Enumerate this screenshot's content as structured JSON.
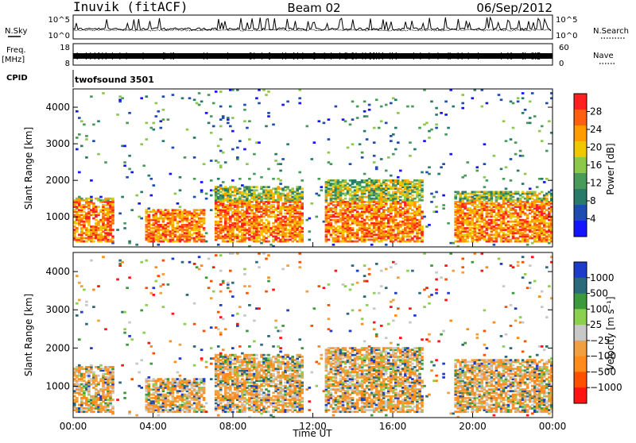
{
  "header": {
    "station": "Inuvik (fitACF)",
    "beam": "Beam 02",
    "date": "06/Sep/2012"
  },
  "left_labels": {
    "nsky": "N.Sky",
    "freq": "Freq.",
    "freq_unit": "[MHz]",
    "cpid": "CPID"
  },
  "right_labels": {
    "nsearch": "N.Search",
    "nave": "Nave"
  },
  "cpid_text": "twofsound 3501",
  "noise_axis": {
    "left_ticks": [
      "10^5",
      "10^0"
    ],
    "right_ticks": [
      "10^5",
      "10^0"
    ]
  },
  "freq_axis": {
    "left_ticks": [
      "18",
      "8"
    ],
    "right_ticks": [
      "60",
      "0"
    ]
  },
  "colors": {
    "power_scale": [
      "#1414ff",
      "#1f4cb0",
      "#2a7a6a",
      "#4a9a5a",
      "#8cc84a",
      "#f0c800",
      "#ff9c00",
      "#ff6010",
      "#ff2020"
    ],
    "velocity_scale": [
      "#ff1414",
      "#ff5000",
      "#ff8c1a",
      "#f0a040",
      "#c8c8c8",
      "#8cd050",
      "#3c9a3c",
      "#2a6a7a",
      "#1e3cc8"
    ]
  },
  "chart_data": [
    {
      "type": "heatmap",
      "panel": "power",
      "ylabel": "Slant Range [km]",
      "ylim": [
        180,
        4500
      ],
      "yticks": [
        "1000",
        "2000",
        "3000",
        "4000"
      ],
      "xlim": [
        "00:00",
        "24:00"
      ],
      "colorbar": {
        "label": "Power [dB]",
        "range": [
          0,
          32
        ],
        "ticks": [
          "28",
          "24",
          "20",
          "16",
          "12",
          "8",
          "4"
        ]
      },
      "echo_bands": [
        {
          "t_hours": [
            0.0,
            2.0
          ],
          "range_km": [
            300,
            1500
          ]
        },
        {
          "t_hours": [
            3.5,
            6.5
          ],
          "range_km": [
            300,
            1200
          ]
        },
        {
          "t_hours": [
            7.0,
            11.5
          ],
          "range_km": [
            300,
            1800
          ]
        },
        {
          "t_hours": [
            12.5,
            17.5
          ],
          "range_km": [
            300,
            2000
          ]
        },
        {
          "t_hours": [
            19.0,
            24.0
          ],
          "range_km": [
            300,
            1700
          ]
        }
      ]
    },
    {
      "type": "heatmap",
      "panel": "velocity",
      "ylabel": "Slant Range [km]",
      "ylim": [
        180,
        4500
      ],
      "yticks": [
        "1000",
        "2000",
        "3000",
        "4000"
      ],
      "xlim": [
        "00:00",
        "24:00"
      ],
      "xticks": [
        "00:00",
        "04:00",
        "08:00",
        "12:00",
        "16:00",
        "20:00",
        "00:00"
      ],
      "xlabel": "Time UT",
      "colorbar": {
        "label": "Velocity [m s⁻¹]",
        "ticks": [
          "1000",
          "500",
          "100",
          "25",
          "−25",
          "−100",
          "−500",
          "−1000"
        ]
      },
      "echo_bands": [
        {
          "t_hours": [
            0.0,
            2.0
          ],
          "range_km": [
            300,
            1500
          ]
        },
        {
          "t_hours": [
            3.5,
            6.5
          ],
          "range_km": [
            300,
            1200
          ]
        },
        {
          "t_hours": [
            7.0,
            11.5
          ],
          "range_km": [
            300,
            1800
          ]
        },
        {
          "t_hours": [
            12.5,
            17.5
          ],
          "range_km": [
            300,
            2000
          ]
        },
        {
          "t_hours": [
            19.0,
            24.0
          ],
          "range_km": [
            300,
            1700
          ]
        }
      ]
    }
  ]
}
